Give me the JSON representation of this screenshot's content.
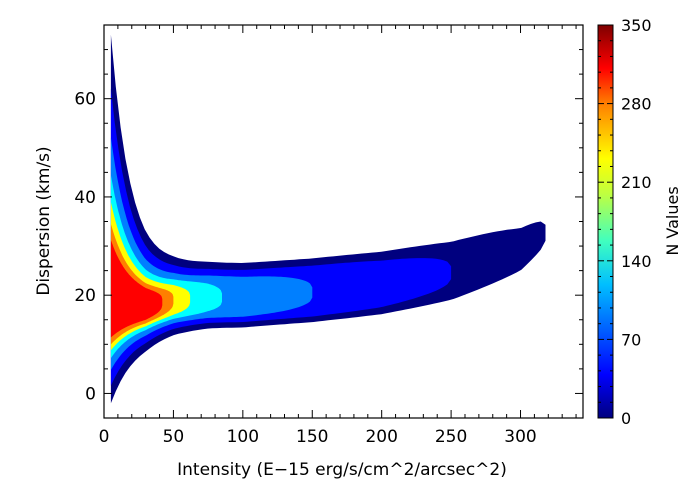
{
  "chart_data": {
    "type": "heatmap",
    "subtype": "2d-density",
    "title": "",
    "xlabel": "Intensity (E−15 erg/s/cm^2/arcsec^2)",
    "ylabel": "Dispersion (km/s)",
    "xlim": [
      0,
      345
    ],
    "ylim": [
      -5,
      75
    ],
    "xticks": [
      0,
      50,
      100,
      150,
      200,
      250,
      300
    ],
    "yticks": [
      0,
      20,
      40,
      60
    ],
    "grid": false,
    "colorbar": {
      "label": "N Values",
      "range": [
        0,
        350
      ],
      "ticks": [
        0,
        70,
        140,
        210,
        280,
        350
      ],
      "colormap": [
        "#00007f",
        "#0000ff",
        "#007fff",
        "#00ffff",
        "#7fff7f",
        "#ffff00",
        "#ff7f00",
        "#ff0000",
        "#7f0000"
      ],
      "placement": "right"
    },
    "density_ridge": {
      "x": [
        5,
        10,
        20,
        30,
        40,
        50,
        75,
        100,
        150,
        200,
        250,
        300,
        320
      ],
      "y": [
        18,
        18,
        18,
        18,
        18.5,
        19,
        19.5,
        19.5,
        20.5,
        22,
        24.5,
        29,
        33
      ]
    },
    "density_levels": {
      "value": [
        10,
        50,
        100,
        150,
        200,
        260,
        320
      ],
      "color": [
        "#00007f",
        "#0000ff",
        "#007fff",
        "#00ffff",
        "#ffff00",
        "#ff7f00",
        "#ff0000"
      ]
    }
  }
}
